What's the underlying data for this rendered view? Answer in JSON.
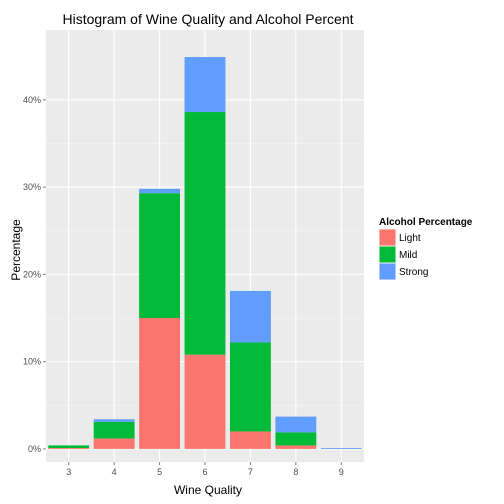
{
  "chart_data": {
    "type": "bar",
    "stacked": true,
    "title": "Histogram of Wine Quality and Alcohol Percent",
    "xlabel": "Wine Quality",
    "ylabel": "Percentage",
    "categories": [
      "3",
      "4",
      "5",
      "6",
      "7",
      "8",
      "9"
    ],
    "yticks": [
      0,
      10,
      20,
      30,
      40
    ],
    "ytick_labels": [
      "0%",
      "10%",
      "20%",
      "30%",
      "40%"
    ],
    "ylim": [
      -1.5,
      48
    ],
    "grid": true,
    "legend_title": "Alcohol Percentage",
    "legend_position": "right",
    "series": [
      {
        "name": "Light",
        "color": "#F8766D",
        "values": [
          0.1,
          1.2,
          15.0,
          10.8,
          2.0,
          0.4,
          0.0
        ]
      },
      {
        "name": "Mild",
        "color": "#00BA38",
        "values": [
          0.3,
          1.9,
          14.3,
          27.8,
          10.2,
          1.5,
          0.0
        ]
      },
      {
        "name": "Strong",
        "color": "#619CFF",
        "values": [
          0.0,
          0.3,
          0.5,
          6.3,
          5.9,
          1.8,
          0.1
        ]
      }
    ]
  }
}
